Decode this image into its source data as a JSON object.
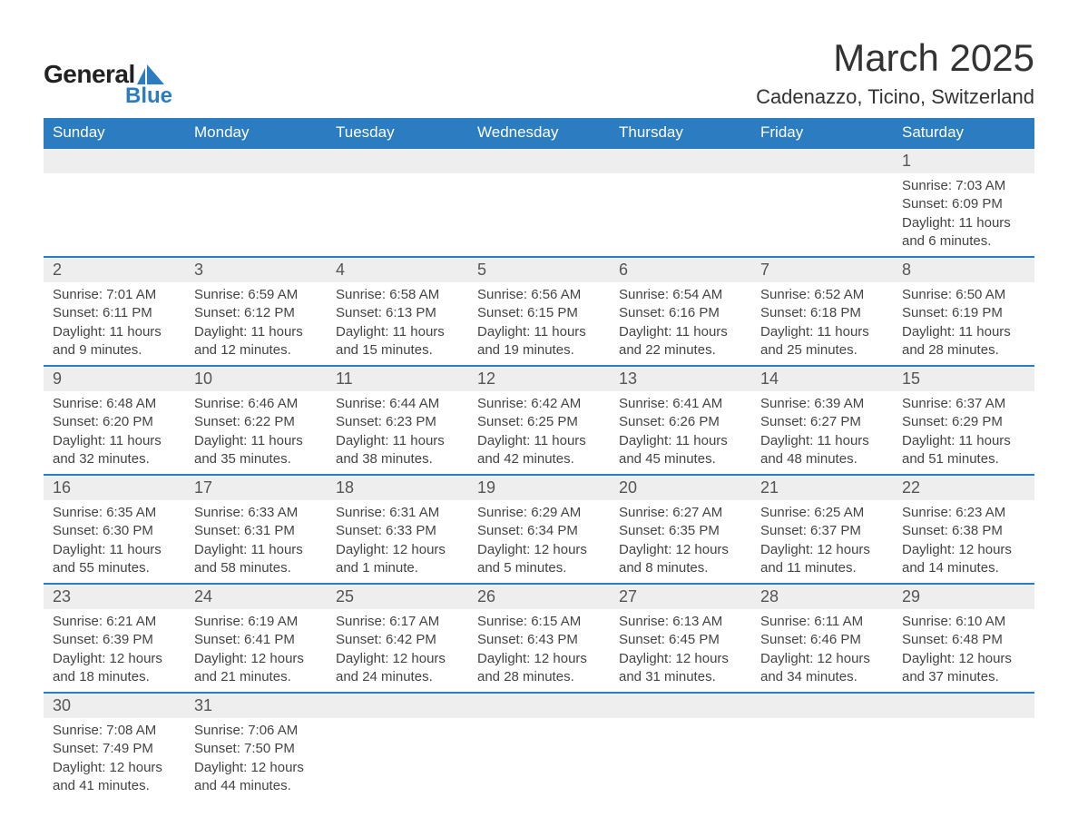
{
  "brand": {
    "word1": "General",
    "word2": "Blue"
  },
  "colors": {
    "header_bg": "#2b7cc0",
    "header_text": "#ffffff",
    "row_separator": "#2b7cc0",
    "daynum_bg": "#eeeeee",
    "body_text": "#444444",
    "brand_blue": "#2b7cc0",
    "page_bg": "#ffffff"
  },
  "title": "March 2025",
  "location": "Cadenazzo, Ticino, Switzerland",
  "day_headers": [
    "Sunday",
    "Monday",
    "Tuesday",
    "Wednesday",
    "Thursday",
    "Friday",
    "Saturday"
  ],
  "weeks": [
    [
      null,
      null,
      null,
      null,
      null,
      null,
      {
        "n": "1",
        "sr": "Sunrise: 7:03 AM",
        "ss": "Sunset: 6:09 PM",
        "d1": "Daylight: 11 hours",
        "d2": "and 6 minutes."
      }
    ],
    [
      {
        "n": "2",
        "sr": "Sunrise: 7:01 AM",
        "ss": "Sunset: 6:11 PM",
        "d1": "Daylight: 11 hours",
        "d2": "and 9 minutes."
      },
      {
        "n": "3",
        "sr": "Sunrise: 6:59 AM",
        "ss": "Sunset: 6:12 PM",
        "d1": "Daylight: 11 hours",
        "d2": "and 12 minutes."
      },
      {
        "n": "4",
        "sr": "Sunrise: 6:58 AM",
        "ss": "Sunset: 6:13 PM",
        "d1": "Daylight: 11 hours",
        "d2": "and 15 minutes."
      },
      {
        "n": "5",
        "sr": "Sunrise: 6:56 AM",
        "ss": "Sunset: 6:15 PM",
        "d1": "Daylight: 11 hours",
        "d2": "and 19 minutes."
      },
      {
        "n": "6",
        "sr": "Sunrise: 6:54 AM",
        "ss": "Sunset: 6:16 PM",
        "d1": "Daylight: 11 hours",
        "d2": "and 22 minutes."
      },
      {
        "n": "7",
        "sr": "Sunrise: 6:52 AM",
        "ss": "Sunset: 6:18 PM",
        "d1": "Daylight: 11 hours",
        "d2": "and 25 minutes."
      },
      {
        "n": "8",
        "sr": "Sunrise: 6:50 AM",
        "ss": "Sunset: 6:19 PM",
        "d1": "Daylight: 11 hours",
        "d2": "and 28 minutes."
      }
    ],
    [
      {
        "n": "9",
        "sr": "Sunrise: 6:48 AM",
        "ss": "Sunset: 6:20 PM",
        "d1": "Daylight: 11 hours",
        "d2": "and 32 minutes."
      },
      {
        "n": "10",
        "sr": "Sunrise: 6:46 AM",
        "ss": "Sunset: 6:22 PM",
        "d1": "Daylight: 11 hours",
        "d2": "and 35 minutes."
      },
      {
        "n": "11",
        "sr": "Sunrise: 6:44 AM",
        "ss": "Sunset: 6:23 PM",
        "d1": "Daylight: 11 hours",
        "d2": "and 38 minutes."
      },
      {
        "n": "12",
        "sr": "Sunrise: 6:42 AM",
        "ss": "Sunset: 6:25 PM",
        "d1": "Daylight: 11 hours",
        "d2": "and 42 minutes."
      },
      {
        "n": "13",
        "sr": "Sunrise: 6:41 AM",
        "ss": "Sunset: 6:26 PM",
        "d1": "Daylight: 11 hours",
        "d2": "and 45 minutes."
      },
      {
        "n": "14",
        "sr": "Sunrise: 6:39 AM",
        "ss": "Sunset: 6:27 PM",
        "d1": "Daylight: 11 hours",
        "d2": "and 48 minutes."
      },
      {
        "n": "15",
        "sr": "Sunrise: 6:37 AM",
        "ss": "Sunset: 6:29 PM",
        "d1": "Daylight: 11 hours",
        "d2": "and 51 minutes."
      }
    ],
    [
      {
        "n": "16",
        "sr": "Sunrise: 6:35 AM",
        "ss": "Sunset: 6:30 PM",
        "d1": "Daylight: 11 hours",
        "d2": "and 55 minutes."
      },
      {
        "n": "17",
        "sr": "Sunrise: 6:33 AM",
        "ss": "Sunset: 6:31 PM",
        "d1": "Daylight: 11 hours",
        "d2": "and 58 minutes."
      },
      {
        "n": "18",
        "sr": "Sunrise: 6:31 AM",
        "ss": "Sunset: 6:33 PM",
        "d1": "Daylight: 12 hours",
        "d2": "and 1 minute."
      },
      {
        "n": "19",
        "sr": "Sunrise: 6:29 AM",
        "ss": "Sunset: 6:34 PM",
        "d1": "Daylight: 12 hours",
        "d2": "and 5 minutes."
      },
      {
        "n": "20",
        "sr": "Sunrise: 6:27 AM",
        "ss": "Sunset: 6:35 PM",
        "d1": "Daylight: 12 hours",
        "d2": "and 8 minutes."
      },
      {
        "n": "21",
        "sr": "Sunrise: 6:25 AM",
        "ss": "Sunset: 6:37 PM",
        "d1": "Daylight: 12 hours",
        "d2": "and 11 minutes."
      },
      {
        "n": "22",
        "sr": "Sunrise: 6:23 AM",
        "ss": "Sunset: 6:38 PM",
        "d1": "Daylight: 12 hours",
        "d2": "and 14 minutes."
      }
    ],
    [
      {
        "n": "23",
        "sr": "Sunrise: 6:21 AM",
        "ss": "Sunset: 6:39 PM",
        "d1": "Daylight: 12 hours",
        "d2": "and 18 minutes."
      },
      {
        "n": "24",
        "sr": "Sunrise: 6:19 AM",
        "ss": "Sunset: 6:41 PM",
        "d1": "Daylight: 12 hours",
        "d2": "and 21 minutes."
      },
      {
        "n": "25",
        "sr": "Sunrise: 6:17 AM",
        "ss": "Sunset: 6:42 PM",
        "d1": "Daylight: 12 hours",
        "d2": "and 24 minutes."
      },
      {
        "n": "26",
        "sr": "Sunrise: 6:15 AM",
        "ss": "Sunset: 6:43 PM",
        "d1": "Daylight: 12 hours",
        "d2": "and 28 minutes."
      },
      {
        "n": "27",
        "sr": "Sunrise: 6:13 AM",
        "ss": "Sunset: 6:45 PM",
        "d1": "Daylight: 12 hours",
        "d2": "and 31 minutes."
      },
      {
        "n": "28",
        "sr": "Sunrise: 6:11 AM",
        "ss": "Sunset: 6:46 PM",
        "d1": "Daylight: 12 hours",
        "d2": "and 34 minutes."
      },
      {
        "n": "29",
        "sr": "Sunrise: 6:10 AM",
        "ss": "Sunset: 6:48 PM",
        "d1": "Daylight: 12 hours",
        "d2": "and 37 minutes."
      }
    ],
    [
      {
        "n": "30",
        "sr": "Sunrise: 7:08 AM",
        "ss": "Sunset: 7:49 PM",
        "d1": "Daylight: 12 hours",
        "d2": "and 41 minutes."
      },
      {
        "n": "31",
        "sr": "Sunrise: 7:06 AM",
        "ss": "Sunset: 7:50 PM",
        "d1": "Daylight: 12 hours",
        "d2": "and 44 minutes."
      },
      null,
      null,
      null,
      null,
      null
    ]
  ]
}
